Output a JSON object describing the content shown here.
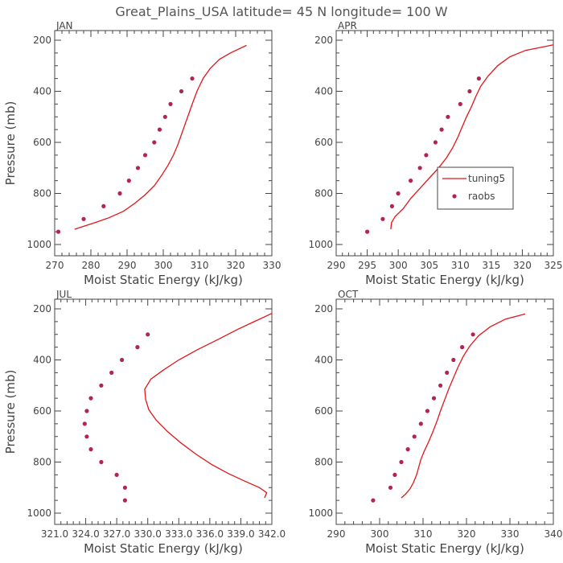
{
  "figure": {
    "title": "Great_Plains_USA   latitude= 45 N longitude= 100 W"
  },
  "legend": {
    "model_label": "tuning5",
    "obs_label": "raobs",
    "model_color": "#e0161b",
    "obs_color": "#b5234f"
  },
  "chart_data": [
    {
      "type": "line",
      "panel_label": "JAN",
      "xlabel": "Moist Static Energy (kJ/kg)",
      "ylabel": "Pressure (mb)",
      "xlim": [
        270,
        330
      ],
      "xticks": [
        "270",
        "280",
        "290",
        "300",
        "310",
        "320",
        "330"
      ],
      "xtick_values": [
        270,
        280,
        290,
        300,
        310,
        320,
        330
      ],
      "ylim": [
        1000,
        200
      ],
      "yticks": [
        "200",
        "400",
        "600",
        "800",
        "1000"
      ],
      "ytick_values": [
        200,
        400,
        600,
        800,
        1000
      ],
      "series": [
        {
          "name": "tuning5",
          "kind": "line",
          "points": [
            [
              275.5,
              940
            ],
            [
              281,
              915
            ],
            [
              285,
              895
            ],
            [
              289,
              870
            ],
            [
              292,
              840
            ],
            [
              295,
              805
            ],
            [
              297.5,
              770
            ],
            [
              299.5,
              730
            ],
            [
              301.3,
              690
            ],
            [
              302.8,
              650
            ],
            [
              304,
              610
            ],
            [
              305,
              570
            ],
            [
              306,
              530
            ],
            [
              307,
              490
            ],
            [
              308,
              450
            ],
            [
              309.3,
              400
            ],
            [
              311,
              350
            ],
            [
              313,
              310
            ],
            [
              315.5,
              275
            ],
            [
              318.5,
              250
            ],
            [
              323,
              220
            ]
          ]
        },
        {
          "name": "raobs",
          "kind": "points",
          "points": [
            [
              271,
              950
            ],
            [
              278,
              900
            ],
            [
              283.5,
              850
            ],
            [
              288,
              800
            ],
            [
              290.5,
              750
            ],
            [
              293,
              700
            ],
            [
              295,
              650
            ],
            [
              297.5,
              600
            ],
            [
              299,
              550
            ],
            [
              300.5,
              500
            ],
            [
              302,
              450
            ],
            [
              305,
              400
            ],
            [
              308,
              350
            ]
          ]
        }
      ]
    },
    {
      "type": "line",
      "panel_label": "APR",
      "xlabel": "Moist Static Energy (kJ/kg)",
      "ylabel": "",
      "xlim": [
        290,
        325
      ],
      "xticks": [
        "290",
        "295",
        "300",
        "305",
        "310",
        "315",
        "320",
        "325"
      ],
      "xtick_values": [
        290,
        295,
        300,
        305,
        310,
        315,
        320,
        325
      ],
      "ylim": [
        1000,
        200
      ],
      "yticks": [
        "200",
        "400",
        "600",
        "800",
        "1000"
      ],
      "ytick_values": [
        200,
        400,
        600,
        800,
        1000
      ],
      "series": [
        {
          "name": "tuning5",
          "kind": "line",
          "points": [
            [
              298.8,
              940
            ],
            [
              298.9,
              915
            ],
            [
              299.5,
              890
            ],
            [
              300.8,
              860
            ],
            [
              302,
              820
            ],
            [
              303.5,
              780
            ],
            [
              305,
              740
            ],
            [
              306.5,
              700
            ],
            [
              307.8,
              660
            ],
            [
              308.8,
              620
            ],
            [
              309.6,
              580
            ],
            [
              310.3,
              540
            ],
            [
              311,
              500
            ],
            [
              311.8,
              460
            ],
            [
              312.5,
              420
            ],
            [
              313.3,
              380
            ],
            [
              314.5,
              340
            ],
            [
              316,
              300
            ],
            [
              318,
              265
            ],
            [
              320.5,
              240
            ],
            [
              325,
              218
            ]
          ]
        },
        {
          "name": "raobs",
          "kind": "points",
          "points": [
            [
              295,
              950
            ],
            [
              297.5,
              900
            ],
            [
              299,
              850
            ],
            [
              300,
              800
            ],
            [
              302,
              750
            ],
            [
              303.5,
              700
            ],
            [
              304.5,
              650
            ],
            [
              306,
              600
            ],
            [
              307,
              550
            ],
            [
              308,
              500
            ],
            [
              310,
              450
            ],
            [
              311.5,
              400
            ],
            [
              313,
              350
            ]
          ]
        }
      ]
    },
    {
      "type": "line",
      "panel_label": "JUL",
      "xlabel": "Moist Static Energy (kJ/kg)",
      "ylabel": "Pressure (mb)",
      "xlim": [
        321.0,
        342.0
      ],
      "xticks": [
        "321.0",
        "324.0",
        "327.0",
        "330.0",
        "333.0",
        "336.0",
        "339.0",
        "342.0"
      ],
      "xtick_values": [
        321.0,
        324.0,
        327.0,
        330.0,
        333.0,
        336.0,
        339.0,
        342.0
      ],
      "ylim": [
        1000,
        200
      ],
      "yticks": [
        "200",
        "400",
        "600",
        "800",
        "1000"
      ],
      "ytick_values": [
        200,
        400,
        600,
        800,
        1000
      ],
      "series": [
        {
          "name": "tuning5",
          "kind": "line",
          "points": [
            [
              341.3,
              940
            ],
            [
              341.5,
              920
            ],
            [
              340.8,
              900
            ],
            [
              339.4,
              875
            ],
            [
              337.8,
              845
            ],
            [
              336.2,
              810
            ],
            [
              334.7,
              770
            ],
            [
              333.2,
              725
            ],
            [
              331.9,
              680
            ],
            [
              330.8,
              635
            ],
            [
              330.1,
              595
            ],
            [
              329.8,
              555
            ],
            [
              329.7,
              515
            ],
            [
              330.3,
              475
            ],
            [
              331.5,
              440
            ],
            [
              333,
              400
            ],
            [
              334.8,
              360
            ],
            [
              336.8,
              320
            ],
            [
              338.7,
              280
            ],
            [
              340.3,
              250
            ],
            [
              342,
              218
            ]
          ]
        },
        {
          "name": "raobs",
          "kind": "points",
          "points": [
            [
              327.8,
              950
            ],
            [
              327.8,
              900
            ],
            [
              327.0,
              850
            ],
            [
              325.5,
              800
            ],
            [
              324.5,
              750
            ],
            [
              324.1,
              700
            ],
            [
              323.9,
              650
            ],
            [
              324.1,
              600
            ],
            [
              324.5,
              550
            ],
            [
              325.5,
              500
            ],
            [
              326.5,
              450
            ],
            [
              327.5,
              400
            ],
            [
              329.0,
              350
            ],
            [
              330.0,
              300
            ]
          ]
        }
      ]
    },
    {
      "type": "line",
      "panel_label": "OCT",
      "xlabel": "Moist Static Energy (kJ/kg)",
      "ylabel": "",
      "xlim": [
        290,
        340
      ],
      "xticks": [
        "290",
        "300",
        "310",
        "320",
        "330",
        "340"
      ],
      "xtick_values": [
        290,
        300,
        310,
        320,
        330,
        340
      ],
      "ylim": [
        1000,
        200
      ],
      "yticks": [
        "200",
        "400",
        "600",
        "800",
        "1000"
      ],
      "ytick_values": [
        200,
        400,
        600,
        800,
        1000
      ],
      "series": [
        {
          "name": "tuning5",
          "kind": "line",
          "points": [
            [
              305,
              940
            ],
            [
              306,
              925
            ],
            [
              307,
              905
            ],
            [
              307.8,
              880
            ],
            [
              308.5,
              850
            ],
            [
              309,
              820
            ],
            [
              309.5,
              790
            ],
            [
              310.2,
              760
            ],
            [
              311.3,
              720
            ],
            [
              312.3,
              680
            ],
            [
              313.2,
              640
            ],
            [
              314,
              600
            ],
            [
              315,
              555
            ],
            [
              316,
              510
            ],
            [
              317,
              470
            ],
            [
              318,
              430
            ],
            [
              319.3,
              385
            ],
            [
              320.8,
              345
            ],
            [
              322.8,
              305
            ],
            [
              325.5,
              270
            ],
            [
              329,
              240
            ],
            [
              333.5,
              220
            ]
          ]
        },
        {
          "name": "raobs",
          "kind": "points",
          "points": [
            [
              298.5,
              950
            ],
            [
              302.5,
              900
            ],
            [
              303.5,
              850
            ],
            [
              305,
              800
            ],
            [
              306.5,
              750
            ],
            [
              308,
              700
            ],
            [
              309.5,
              650
            ],
            [
              311,
              600
            ],
            [
              312.5,
              550
            ],
            [
              314,
              500
            ],
            [
              315.5,
              450
            ],
            [
              317,
              400
            ],
            [
              319,
              350
            ],
            [
              321.5,
              300
            ]
          ]
        }
      ]
    }
  ]
}
